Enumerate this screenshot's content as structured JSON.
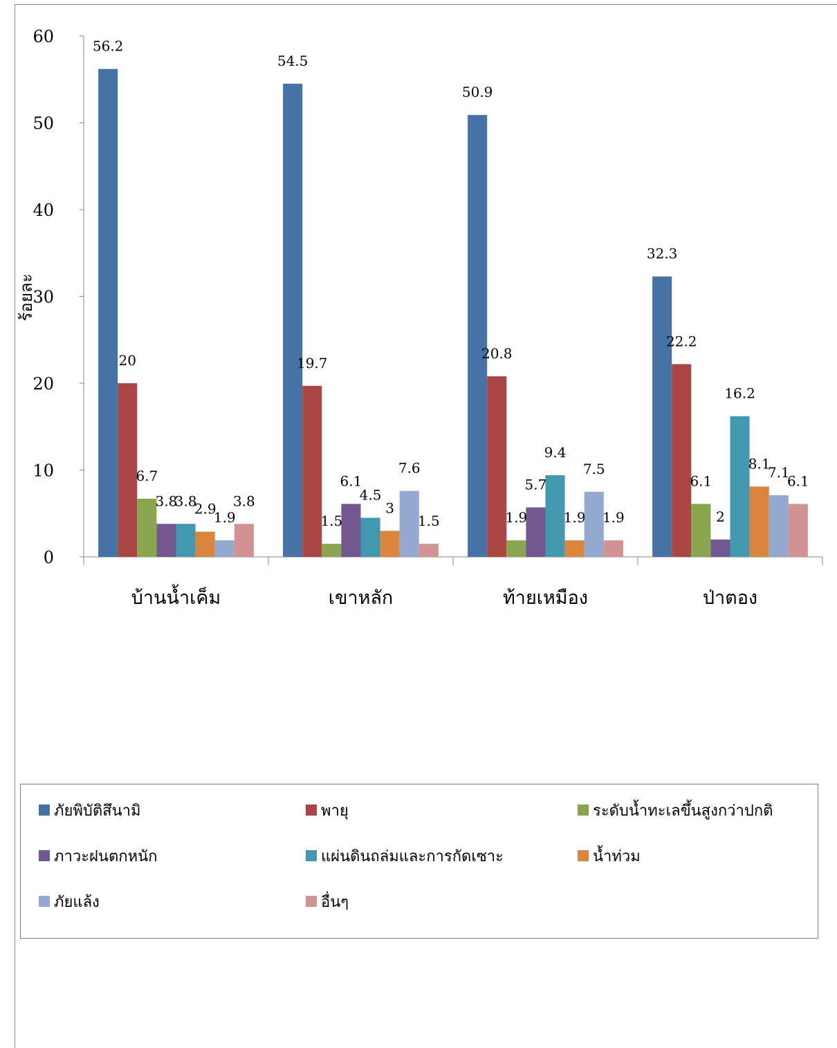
{
  "chart_data": {
    "type": "bar",
    "ylabel": "ร้อยละ",
    "ylim": [
      0,
      60
    ],
    "yticks": [
      0,
      10,
      20,
      30,
      40,
      50,
      60
    ],
    "grid": false,
    "legend_position": "bottom",
    "categories": [
      "บ้านน้ำเค็ม",
      "เขาหลัก",
      "ท้ายเหมือง",
      "ป่าตอง"
    ],
    "series": [
      {
        "name": "ภัยพิบัติสึนามิ",
        "color": "#4572a7",
        "values": [
          56.2,
          54.5,
          50.9,
          32.3
        ]
      },
      {
        "name": "พายุ",
        "color": "#aa4643",
        "values": [
          20,
          19.7,
          20.8,
          22.2
        ]
      },
      {
        "name": "ระดับน้ำทะเลขึ้นสูงกว่าปกติ",
        "color": "#89a54e",
        "values": [
          6.7,
          1.5,
          1.9,
          6.1
        ]
      },
      {
        "name": "ภาวะฝนตกหนัก",
        "color": "#71588f",
        "values": [
          3.8,
          6.1,
          5.7,
          2
        ]
      },
      {
        "name": "แผ่นดินถล่มและการกัดเซาะ",
        "color": "#4198af",
        "values": [
          3.8,
          4.5,
          9.4,
          16.2
        ]
      },
      {
        "name": "น้ำท่วม",
        "color": "#db843d",
        "values": [
          2.9,
          3,
          1.9,
          8.1
        ]
      },
      {
        "name": "ภัยแล้ง",
        "color": "#93a9cf",
        "values": [
          1.9,
          7.6,
          7.5,
          7.1
        ]
      },
      {
        "name": "อื่นๆ",
        "color": "#d19392",
        "values": [
          3.8,
          1.5,
          1.9,
          6.1
        ]
      }
    ]
  }
}
